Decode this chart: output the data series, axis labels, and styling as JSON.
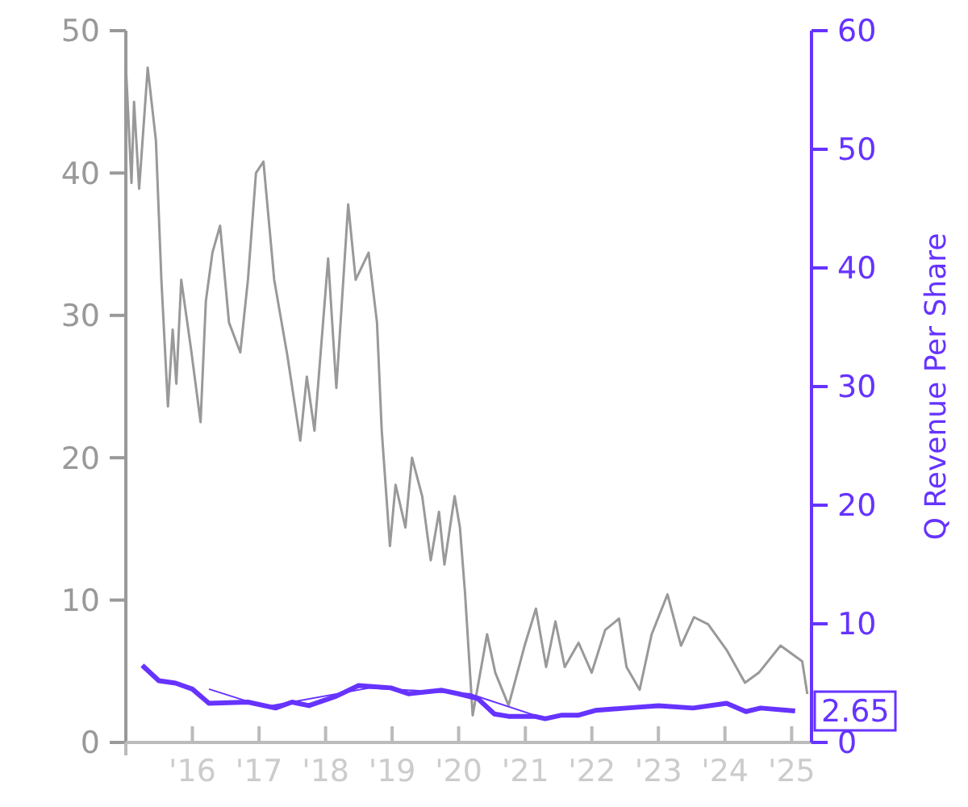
{
  "chart_data": {
    "type": "line",
    "y2label": "Q Revenue Per Share",
    "grid": false,
    "xlim": [
      "2015-01-01",
      "2025-04-20"
    ],
    "xticks": [
      {
        "value": "2016-01-01",
        "label": "'16"
      },
      {
        "value": "2017-01-01",
        "label": "'17"
      },
      {
        "value": "2018-01-01",
        "label": "'18"
      },
      {
        "value": "2019-01-01",
        "label": "'19"
      },
      {
        "value": "2020-01-01",
        "label": "'20"
      },
      {
        "value": "2021-01-01",
        "label": "'21"
      },
      {
        "value": "2022-01-01",
        "label": "'22"
      },
      {
        "value": "2023-01-01",
        "label": "'23"
      },
      {
        "value": "2024-01-01",
        "label": "'24"
      },
      {
        "value": "2025-01-01",
        "label": "'25"
      }
    ],
    "ylim": [
      0,
      50
    ],
    "yticks": [
      0,
      10,
      20,
      30,
      40,
      50
    ],
    "y2lim": [
      0,
      60
    ],
    "y2ticks": [
      0,
      10,
      20,
      30,
      40,
      50,
      60
    ],
    "series": [
      {
        "color": "#999999",
        "x": [
          "2015-01-01",
          "2015-02-01",
          "2015-02-15",
          "2015-03-15",
          "2015-05-01",
          "2015-06-15",
          "2015-07-15",
          "2015-08-20",
          "2015-09-15",
          "2015-10-05",
          "2015-11-01",
          "2015-12-25",
          "2016-02-15",
          "2016-03-15",
          "2016-04-20",
          "2016-06-01",
          "2016-07-20",
          "2016-09-20",
          "2016-11-01",
          "2016-12-15",
          "2017-01-25",
          "2017-03-25",
          "2017-06-05",
          "2017-08-15",
          "2017-09-20",
          "2017-11-01",
          "2018-01-15",
          "2018-03-01",
          "2018-05-05",
          "2018-06-15",
          "2018-08-25",
          "2018-10-10",
          "2018-11-05",
          "2018-12-20",
          "2019-01-20",
          "2019-03-15",
          "2019-04-20",
          "2019-06-15",
          "2019-08-01",
          "2019-09-15",
          "2019-10-15",
          "2019-12-10",
          "2020-01-08",
          "2020-02-05",
          "2020-03-18",
          "2020-06-05",
          "2020-07-20",
          "2020-10-01",
          "2020-12-28",
          "2021-02-28",
          "2021-04-25",
          "2021-06-15",
          "2021-08-05",
          "2021-10-20",
          "2021-12-31",
          "2022-03-15",
          "2022-05-30",
          "2022-07-10",
          "2022-09-20",
          "2022-11-25",
          "2023-02-20",
          "2023-05-05",
          "2023-07-15",
          "2023-10-01",
          "2024-01-10",
          "2024-04-20",
          "2024-07-05",
          "2024-11-01",
          "2025-02-28",
          "2025-03-28"
        ],
        "values": [
          47.6,
          39.3,
          45,
          38.9,
          47.4,
          42.3,
          32.5,
          23.6,
          29,
          25.2,
          32.5,
          27.6,
          22.5,
          31,
          34.4,
          36.3,
          29.5,
          27.4,
          32.5,
          40,
          40.8,
          32.5,
          27.2,
          21.2,
          25.7,
          21.9,
          34,
          24.9,
          37.8,
          32.5,
          34.4,
          29.5,
          21.9,
          13.8,
          18.1,
          15.1,
          20,
          17.3,
          12.8,
          16.2,
          12.5,
          17.3,
          15.1,
          10.5,
          1.9,
          7.6,
          4.9,
          2.6,
          6.8,
          9.4,
          5.3,
          8.5,
          5.3,
          7,
          4.9,
          7.9,
          8.7,
          5.3,
          3.7,
          7.6,
          10.4,
          6.8,
          8.8,
          8.3,
          6.5,
          4.2,
          4.9,
          6.8,
          5.7,
          3.4
        ]
      },
      {
        "color": "#6633ff",
        "axis": "y2",
        "x": [
          "2015-04-01",
          "2015-07-01",
          "2015-10-01",
          "2016-01-01",
          "2016-04-01",
          "2016-11-01",
          "2017-04-01",
          "2017-07-01",
          "2017-10-01",
          "2018-03-01",
          "2018-07-01",
          "2018-12-25",
          "2019-04-01",
          "2019-10-01",
          "2020-01-01",
          "2020-04-15",
          "2020-07-15",
          "2020-10-01",
          "2021-02-20",
          "2021-04-20",
          "2021-07-20",
          "2021-10-20",
          "2022-01-20",
          "2022-07-10",
          "2023-01-01",
          "2023-07-10",
          "2024-01-10",
          "2024-04-25",
          "2024-07-15",
          "2025-01-20"
        ],
        "values": [
          6.5,
          5.2,
          5.0,
          4.5,
          3.3,
          3.4,
          2.9,
          3.4,
          3.1,
          3.9,
          4.8,
          4.6,
          4.1,
          4.4,
          4.1,
          3.7,
          2.4,
          2.2,
          2.2,
          2.0,
          2.3,
          2.3,
          2.7,
          2.9,
          3.1,
          2.9,
          3.3,
          2.6,
          2.9,
          2.65
        ],
        "value_labels": [
          null,
          null,
          null,
          null,
          null,
          null,
          null,
          null,
          null,
          null,
          null,
          null,
          null,
          null,
          null,
          null,
          null,
          null,
          null,
          null,
          null,
          null,
          null,
          null,
          null,
          null,
          null,
          null,
          null,
          "2.65"
        ]
      },
      {
        "color": "#6633ff",
        "axis": "y2",
        "x": [
          "2016-04-01",
          "2017-02-01",
          "2018-09-01",
          "2020-03-01",
          "2021-04-20"
        ],
        "values": [
          4.5,
          3.0,
          4.6,
          4.1,
          2.0
        ]
      }
    ]
  }
}
